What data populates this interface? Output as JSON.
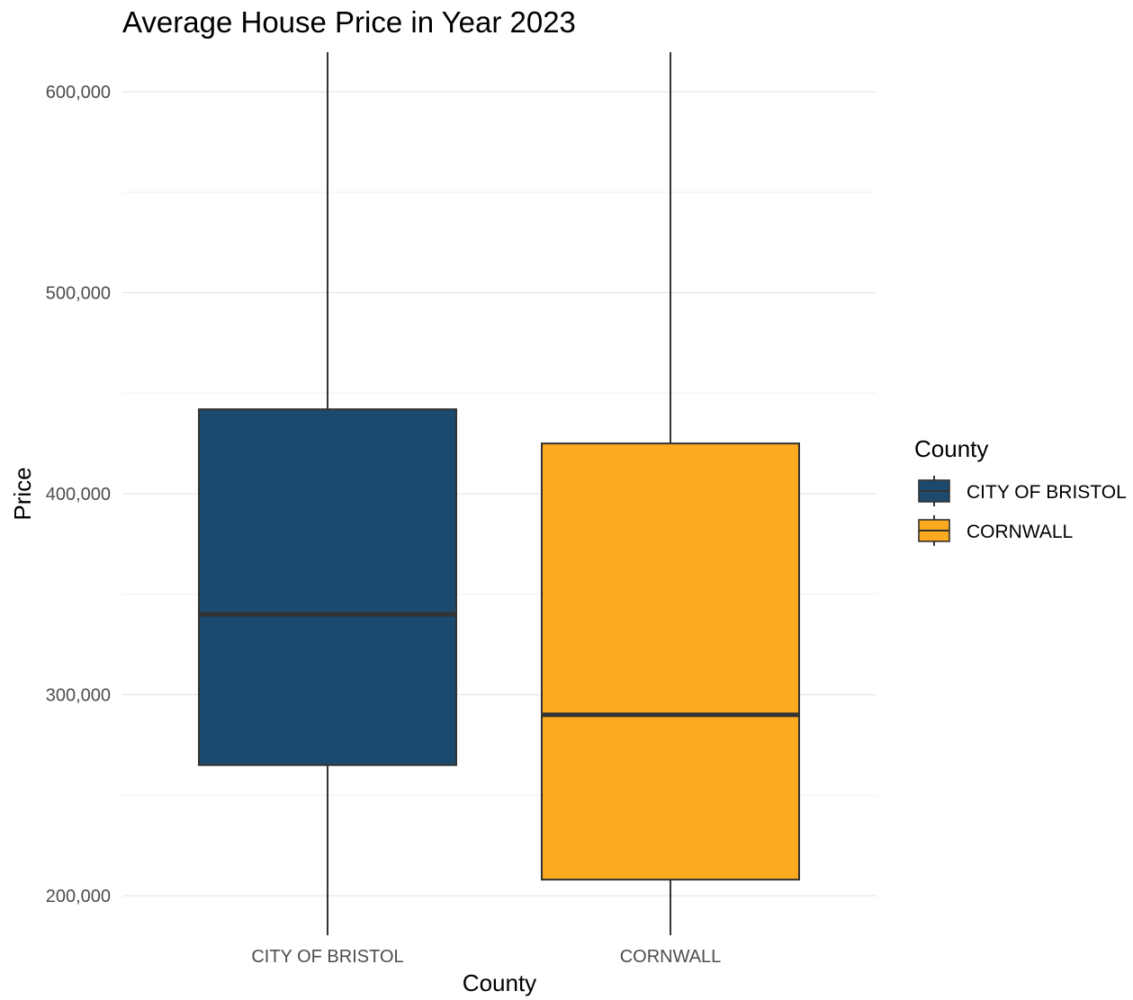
{
  "chart_data": {
    "type": "box",
    "title": "Average House Price in Year 2023",
    "xlabel": "County",
    "ylabel": "Price",
    "ylim": [
      180000,
      620000
    ],
    "yticks": [
      200000,
      300000,
      400000,
      500000,
      600000
    ],
    "ytick_labels": [
      "200,000",
      "300,000",
      "400,000",
      "500,000",
      "600,000"
    ],
    "categories": [
      "CITY OF BRISTOL",
      "CORNWALL"
    ],
    "series": [
      {
        "name": "CITY OF BRISTOL",
        "color": "#1b4a6e",
        "q1": 265000,
        "median": 340000,
        "q3": 442000
      },
      {
        "name": "CORNWALL",
        "color": "#fcaa1f",
        "q1": 208000,
        "median": 290000,
        "q3": 425000
      }
    ],
    "grid": true,
    "legend": {
      "title": "County",
      "position": "right",
      "entries": [
        "CITY OF BRISTOL",
        "CORNWALL"
      ]
    }
  }
}
